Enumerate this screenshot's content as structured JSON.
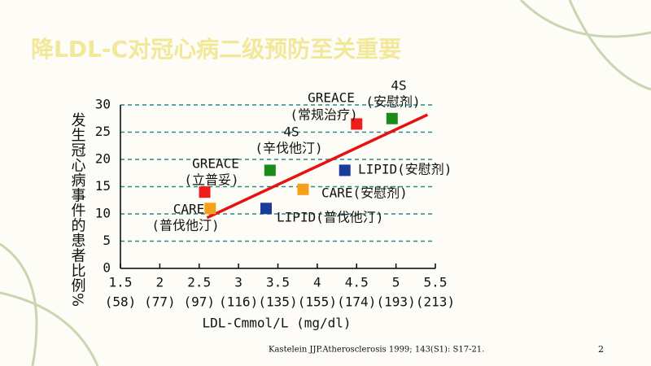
{
  "chart_data": {
    "type": "scatter",
    "title": "降LDL-C对冠心病二级预防至关重要",
    "y_label": "发生冠心病事件的患者比例%",
    "x_label": "LDL-Cmmol/L (mg/dl)",
    "xlim": [
      1.5,
      5.5
    ],
    "xticks": [
      1.5,
      2.0,
      2.5,
      3.0,
      3.5,
      4.0,
      4.5,
      5.0,
      5.5
    ],
    "xtick_sublabels": [
      "(58)",
      "(77)",
      "(97)",
      "(116)",
      "(135)",
      "(155)",
      "(174)",
      "(193)",
      "(213)"
    ],
    "ylim": [
      0,
      30
    ],
    "yticks": [
      0,
      5,
      10,
      15,
      20,
      25,
      30
    ],
    "grid": true,
    "points": [
      {
        "label": [
          "GREACE",
          "(常规治疗)"
        ],
        "x": 4.5,
        "y": 26.5,
        "color": "#ee1c1c"
      },
      {
        "label": [
          "4S",
          "(安慰剂)"
        ],
        "x": 4.95,
        "y": 27.5,
        "color": "#1a8c1a"
      },
      {
        "label": [
          "4S",
          "(辛伐他汀)"
        ],
        "x": 3.4,
        "y": 18,
        "color": "#1a8c1a"
      },
      {
        "label": [
          "LIPID(安慰剂)"
        ],
        "x": 4.35,
        "y": 18,
        "color": "#1a3a9c"
      },
      {
        "label": [
          "CARE(安慰剂)"
        ],
        "x": 3.82,
        "y": 14.5,
        "color": "#f5a01a"
      },
      {
        "label": [
          "GREACE",
          "(立普妥)"
        ],
        "x": 2.57,
        "y": 14,
        "color": "#ee1c1c"
      },
      {
        "label": [
          "CARE",
          "(普伐他汀)"
        ],
        "x": 2.64,
        "y": 11,
        "color": "#f5a01a"
      },
      {
        "label": [
          "LIPID(普伐他汀)"
        ],
        "x": 3.35,
        "y": 11,
        "color": "#1a3a9c"
      }
    ],
    "trend_line": {
      "x": [
        2.6,
        5.4
      ],
      "y": [
        9.3,
        28.2
      ],
      "color": "#e81010"
    },
    "footnote": "Kastelein JJP.Atherosclerosis 1999; 143(S1): S17-21.",
    "page_number": "2"
  }
}
